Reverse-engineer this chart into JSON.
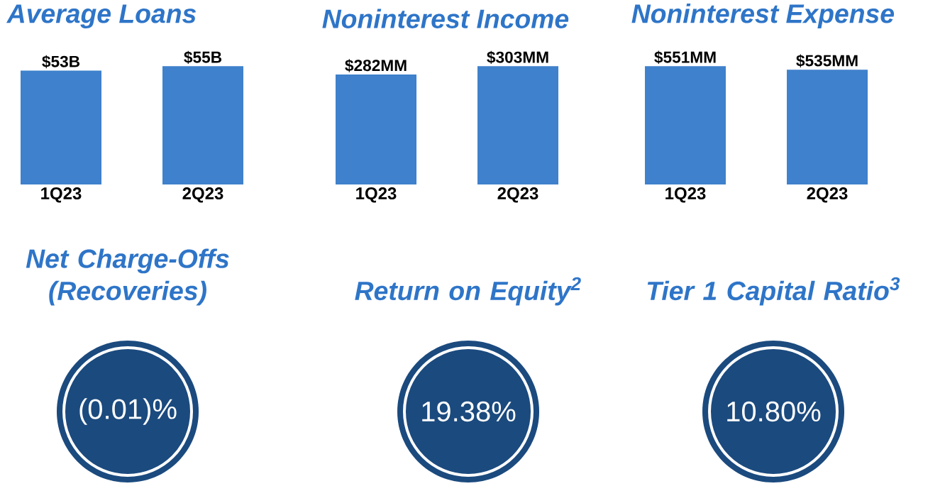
{
  "chart_data": [
    {
      "type": "bar",
      "title": "Average Loans",
      "categories": [
        "1Q23",
        "2Q23"
      ],
      "values": [
        53,
        55
      ],
      "value_labels": [
        "$53B",
        "$55B"
      ],
      "color": "#3f81cc"
    },
    {
      "type": "bar",
      "title": "Noninterest Income",
      "categories": [
        "1Q23",
        "2Q23"
      ],
      "values": [
        282,
        303
      ],
      "value_labels": [
        "$282MM",
        "$303MM"
      ],
      "color": "#3f81cc"
    },
    {
      "type": "bar",
      "title": "Noninterest Expense",
      "categories": [
        "1Q23",
        "2Q23"
      ],
      "values": [
        551,
        535
      ],
      "value_labels": [
        "$551MM",
        "$535MM"
      ],
      "color": "#3f81cc"
    },
    {
      "type": "other",
      "title": "Net Charge-Offs (Recoveries)",
      "annotations": [
        "(0.01)%"
      ]
    },
    {
      "type": "other",
      "title": "Return on Equity$^{2}$",
      "annotations": [
        "19.38%"
      ]
    },
    {
      "type": "other",
      "title": "Tier 1 Capital Ratio$^{3}$",
      "annotations": [
        "10.80%"
      ]
    }
  ]
}
